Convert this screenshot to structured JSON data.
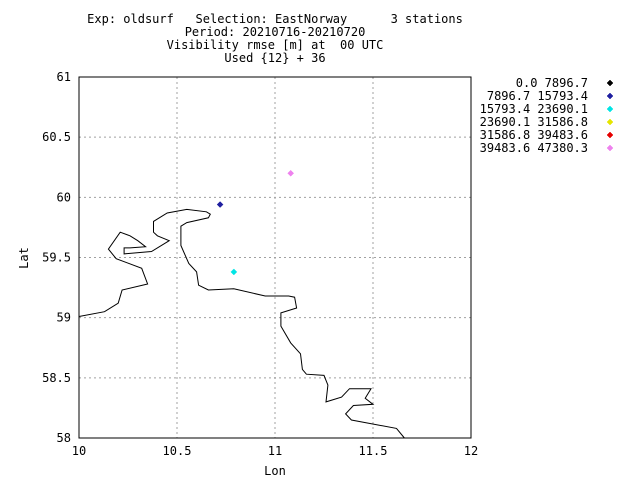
{
  "chart_data": {
    "type": "scatter",
    "title_lines": [
      "Exp: oldsurf   Selection: EastNorway      3 stations",
      "Period: 20210716-20210720",
      "Visibility rmse [m] at  00 UTC",
      "Used {12} + 36"
    ],
    "xlabel": "Lon",
    "ylabel": "Lat",
    "xlim": [
      10,
      12
    ],
    "ylim": [
      58,
      61
    ],
    "xticks": [
      "10",
      "10.5",
      "11",
      "11.5",
      "12"
    ],
    "yticks": [
      "58",
      "58.5",
      "59",
      "59.5",
      "60",
      "60.5",
      "61"
    ],
    "grid": true,
    "legend_position": "right",
    "legend": [
      {
        "label": "0.0 7896.7",
        "color": "#000000"
      },
      {
        "label": "7896.7 15793.4",
        "color": "#1f1fa0"
      },
      {
        "label": "15793.4 23690.1",
        "color": "#00e5e5"
      },
      {
        "label": "23690.1 31586.8",
        "color": "#e5e500"
      },
      {
        "label": "31586.8 39483.6",
        "color": "#e50000"
      },
      {
        "label": "39483.6 47380.3",
        "color": "#ee82ee"
      }
    ],
    "points": [
      {
        "x": 10.72,
        "y": 59.94,
        "class": 1
      },
      {
        "x": 10.79,
        "y": 59.38,
        "class": 2
      },
      {
        "x": 11.08,
        "y": 60.2,
        "class": 5
      }
    ],
    "coastline": [
      [
        10.0,
        59.01
      ],
      [
        10.13,
        59.05
      ],
      [
        10.2,
        59.12
      ],
      [
        10.22,
        59.23
      ],
      [
        10.35,
        59.28
      ],
      [
        10.32,
        59.41
      ],
      [
        10.19,
        59.49
      ],
      [
        10.15,
        59.57
      ],
      [
        10.21,
        59.71
      ],
      [
        10.26,
        59.68
      ],
      [
        10.3,
        59.64
      ],
      [
        10.34,
        59.59
      ],
      [
        10.26,
        59.58
      ],
      [
        10.23,
        59.58
      ],
      [
        10.23,
        59.53
      ],
      [
        10.37,
        59.55
      ],
      [
        10.46,
        59.64
      ],
      [
        10.4,
        59.68
      ],
      [
        10.38,
        59.71
      ],
      [
        10.38,
        59.8
      ],
      [
        10.45,
        59.87
      ],
      [
        10.55,
        59.9
      ],
      [
        10.65,
        59.88
      ],
      [
        10.67,
        59.86
      ],
      [
        10.66,
        59.83
      ],
      [
        10.55,
        59.79
      ],
      [
        10.52,
        59.76
      ],
      [
        10.52,
        59.6
      ],
      [
        10.56,
        59.45
      ],
      [
        10.6,
        59.38
      ],
      [
        10.61,
        59.27
      ],
      [
        10.66,
        59.23
      ],
      [
        10.79,
        59.24
      ],
      [
        10.95,
        59.18
      ],
      [
        11.07,
        59.18
      ],
      [
        11.1,
        59.17
      ],
      [
        11.11,
        59.08
      ],
      [
        11.03,
        59.04
      ],
      [
        11.03,
        58.93
      ],
      [
        11.08,
        58.79
      ],
      [
        11.13,
        58.7
      ],
      [
        11.14,
        58.57
      ],
      [
        11.16,
        58.53
      ],
      [
        11.25,
        58.52
      ],
      [
        11.27,
        58.44
      ],
      [
        11.26,
        58.3
      ],
      [
        11.3,
        58.32
      ],
      [
        11.34,
        58.34
      ],
      [
        11.38,
        58.41
      ],
      [
        11.49,
        58.41
      ],
      [
        11.46,
        58.33
      ],
      [
        11.5,
        58.28
      ],
      [
        11.4,
        58.27
      ],
      [
        11.36,
        58.2
      ],
      [
        11.39,
        58.15
      ],
      [
        11.62,
        58.08
      ],
      [
        11.66,
        58.0
      ]
    ]
  }
}
